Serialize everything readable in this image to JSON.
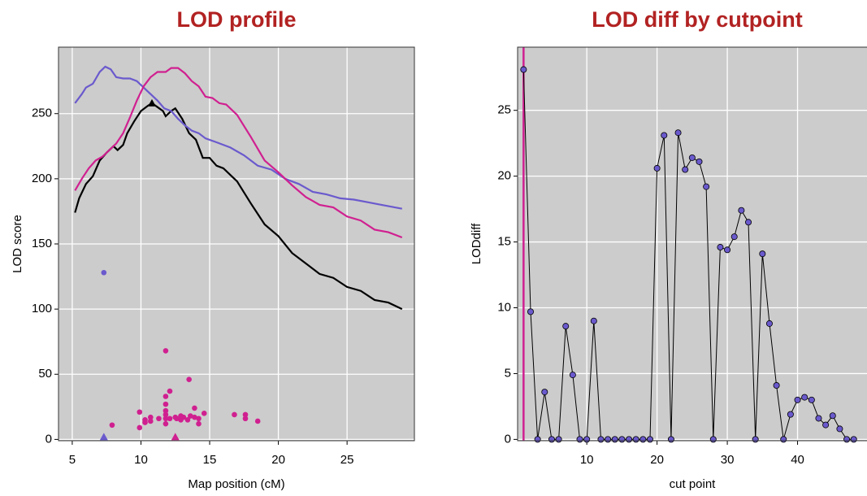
{
  "chart_data": [
    {
      "type": "line",
      "title": "LOD profile",
      "xlabel": "Map position (cM)",
      "ylabel": "LOD score",
      "xlim": [
        4,
        29.9
      ],
      "ylim": [
        -1,
        301
      ],
      "xticks": [
        5,
        10,
        15,
        20,
        25
      ],
      "yticks": [
        0,
        50,
        100,
        150,
        200,
        250
      ],
      "grid": true,
      "background": "#cccccc",
      "series": [
        {
          "color": "#000000",
          "x": [
            5.2,
            5.5,
            6,
            6.5,
            7,
            7.5,
            8,
            8.3,
            8.7,
            9,
            9.5,
            10,
            10.5,
            10.8,
            11.2,
            11.6,
            11.8,
            12.2,
            12.5,
            13,
            13.5,
            14,
            14.5,
            15,
            15.5,
            16,
            17,
            18,
            19,
            20,
            21,
            22,
            23,
            24,
            25,
            26,
            27,
            28,
            29
          ],
          "values": [
            174,
            185,
            196,
            202,
            214,
            220,
            225,
            222,
            226,
            235,
            244,
            252,
            256,
            258,
            255,
            252,
            248,
            252,
            254,
            246,
            235,
            230,
            216,
            216,
            210,
            208,
            198,
            181,
            165,
            156,
            143,
            135,
            127,
            124,
            117,
            114,
            107,
            105,
            100
          ]
        },
        {
          "color": "#6a5acd",
          "x": [
            5.2,
            5.7,
            6,
            6.5,
            7,
            7.4,
            7.8,
            8.2,
            8.7,
            9.2,
            9.7,
            10.2,
            10.7,
            11.2,
            11.7,
            12.2,
            12.7,
            13.2,
            13.7,
            14.2,
            14.7,
            15.5,
            16.5,
            17.5,
            18.5,
            19.5,
            20.5,
            21.5,
            22.5,
            23.5,
            24.5,
            25.5,
            26.5,
            27.5,
            29
          ],
          "values": [
            258,
            265,
            270,
            273,
            282,
            286,
            284,
            278,
            277,
            277,
            275,
            270,
            265,
            260,
            254,
            252,
            246,
            241,
            237,
            235,
            231,
            228,
            224,
            218,
            210,
            207,
            200,
            196,
            190,
            188,
            185,
            184,
            182,
            180,
            177
          ]
        },
        {
          "color": "#d02090",
          "x": [
            5.2,
            5.7,
            6.2,
            6.7,
            7.2,
            7.7,
            8.2,
            8.7,
            9.2,
            9.7,
            10.2,
            10.7,
            11.2,
            11.8,
            12.2,
            12.7,
            13.2,
            13.7,
            14.2,
            14.7,
            15.2,
            15.7,
            16.2,
            17,
            18,
            19,
            20,
            21,
            22,
            23,
            24,
            25,
            26,
            27,
            28,
            29
          ],
          "values": [
            191,
            200,
            208,
            214,
            217,
            222,
            227,
            235,
            247,
            260,
            271,
            278,
            282,
            282,
            285,
            285,
            281,
            275,
            271,
            263,
            262,
            258,
            257,
            249,
            232,
            214,
            205,
            195,
            186,
            180,
            178,
            171,
            168,
            161,
            159,
            155
          ]
        }
      ],
      "points": [
        {
          "color": "#d02090",
          "marker": "circle",
          "x": [
            7.9,
            9.9,
            9.9,
            10.3,
            10.3,
            10.7,
            10.7,
            11.3,
            11.8,
            11.8,
            11.8,
            11.8,
            11.8,
            11.8,
            11.8,
            12.1,
            12.1,
            12.5,
            12.6,
            12.9,
            12.9,
            13.1,
            13.4,
            13.5,
            13.6,
            13.9,
            13.9,
            14.2,
            14.2,
            14.6,
            16.8,
            17.6,
            17.6,
            18.5
          ],
          "values": [
            11,
            21,
            9,
            15,
            13,
            17,
            14,
            16,
            68,
            33,
            27,
            22,
            19,
            16,
            12,
            37,
            16,
            17,
            16,
            18,
            15,
            17,
            15,
            46,
            18,
            24,
            17,
            16,
            12,
            20,
            19,
            19,
            16,
            14
          ]
        },
        {
          "color": "#6a5acd",
          "marker": "circle",
          "x": [
            7.3
          ],
          "values": [
            128
          ]
        },
        {
          "color": "#6a5acd",
          "marker": "triangle",
          "x": [
            7.3
          ],
          "values": [
            0
          ]
        },
        {
          "color": "#d02090",
          "marker": "triangle",
          "x": [
            12.5
          ],
          "values": [
            0
          ]
        },
        {
          "color": "#000000",
          "marker": "triangle",
          "x": [
            10.8
          ],
          "values": [
            258
          ]
        }
      ]
    },
    {
      "type": "line",
      "title": "LOD diff by cutpoint",
      "xlabel": "cut point",
      "ylabel": "LODdiff",
      "xlim": [
        0.15,
        50
      ],
      "ylim": [
        -0.1,
        29.8
      ],
      "xticks": [
        10,
        20,
        30,
        40
      ],
      "yticks": [
        0,
        5,
        10,
        15,
        20,
        25
      ],
      "grid": true,
      "background": "#cccccc",
      "reference_x": 1,
      "reference_color": "#d02090",
      "series": [
        {
          "color": "#000000",
          "marker_color": "#6a5acd",
          "x": [
            1,
            2,
            3,
            4,
            5,
            6,
            7,
            8,
            9,
            10,
            11,
            12,
            13,
            14,
            15,
            16,
            17,
            18,
            19,
            20,
            21,
            22,
            23,
            24,
            25,
            26,
            27,
            28,
            29,
            30,
            31,
            32,
            33,
            34,
            35,
            36,
            37,
            38,
            39,
            40,
            41,
            42,
            43,
            44,
            45,
            46,
            47,
            48
          ],
          "values": [
            28.1,
            9.7,
            0,
            3.6,
            0,
            0,
            8.6,
            4.9,
            0,
            0,
            9.0,
            0,
            0,
            0,
            0,
            0,
            0,
            0,
            0,
            20.6,
            23.1,
            0,
            23.3,
            20.5,
            21.4,
            21.1,
            19.2,
            0,
            14.6,
            14.4,
            15.4,
            17.4,
            16.5,
            0,
            14.1,
            8.8,
            4.1,
            0,
            1.9,
            3.0,
            3.2,
            3.0,
            1.6,
            1.1,
            1.8,
            0.8,
            0,
            0
          ]
        }
      ]
    }
  ]
}
